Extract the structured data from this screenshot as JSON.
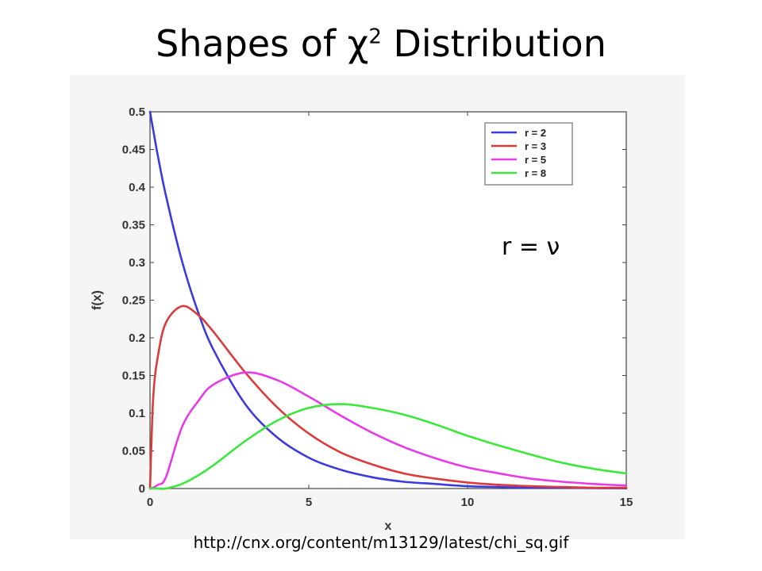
{
  "slide": {
    "title_prefix": "Shapes of χ",
    "title_superscript": "2",
    "title_suffix": " Distribution",
    "annotation": "r = ν",
    "source_url": "http://cnx.org/content/m13129/latest/chi_sq.gif"
  },
  "chart_data": {
    "type": "line",
    "xlabel": "x",
    "ylabel": "f(x)",
    "xlim": [
      0,
      15
    ],
    "ylim": [
      0,
      0.5
    ],
    "x_ticks": [
      "0",
      "5",
      "10",
      "15"
    ],
    "y_ticks": [
      "0",
      "0.05",
      "0.1",
      "0.15",
      "0.2",
      "0.25",
      "0.3",
      "0.35",
      "0.4",
      "0.45",
      "0.5"
    ],
    "grid": false,
    "legend_position": "top-right",
    "x": [
      0,
      0.1,
      0.25,
      0.5,
      1,
      1.5,
      2,
      3,
      4,
      5,
      6,
      7,
      8,
      9,
      10,
      11,
      12,
      13,
      14,
      15
    ],
    "series": [
      {
        "name": "r = 2",
        "color": "#3b3bdd",
        "values": [
          0.5,
          0.476,
          0.441,
          0.389,
          0.303,
          0.236,
          0.184,
          0.112,
          0.068,
          0.041,
          0.025,
          0.015,
          0.009,
          0.006,
          0.003,
          0.002,
          0.001,
          0.001,
          0.0005,
          0.0003
        ]
      },
      {
        "name": "r = 3",
        "color": "#dd3b3b",
        "values": [
          0.0,
          0.12,
          0.176,
          0.22,
          0.242,
          0.231,
          0.208,
          0.154,
          0.108,
          0.073,
          0.048,
          0.032,
          0.02,
          0.013,
          0.008,
          0.005,
          0.003,
          0.002,
          0.001,
          0.001
        ]
      },
      {
        "name": "r = 5",
        "color": "#e83be8",
        "values": [
          0.0,
          0.001,
          0.005,
          0.015,
          0.081,
          0.115,
          0.138,
          0.154,
          0.144,
          0.122,
          0.097,
          0.074,
          0.055,
          0.04,
          0.028,
          0.02,
          0.013,
          0.009,
          0.006,
          0.004
        ]
      },
      {
        "name": "r = 8",
        "color": "#3be83b",
        "values": [
          0.0,
          0.0,
          0.0,
          0.0,
          0.006,
          0.017,
          0.031,
          0.063,
          0.09,
          0.107,
          0.112,
          0.107,
          0.098,
          0.085,
          0.07,
          0.057,
          0.045,
          0.034,
          0.026,
          0.02
        ]
      }
    ]
  }
}
